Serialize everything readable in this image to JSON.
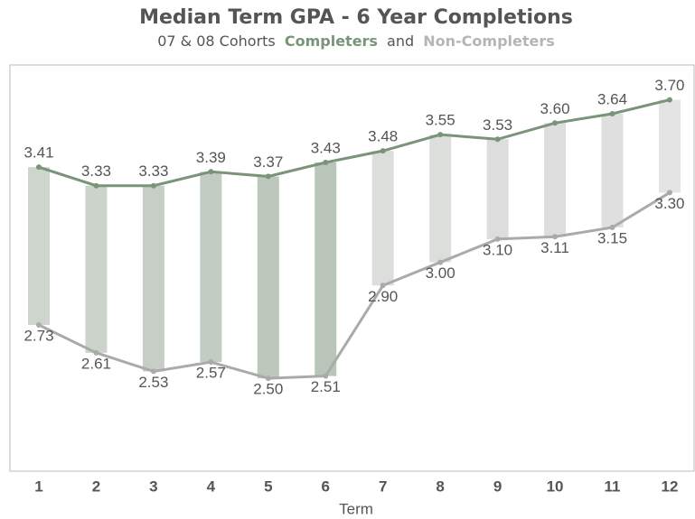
{
  "chart_data": {
    "type": "line-range",
    "title": "Median Term GPA - 6 Year Completions",
    "subtitle": [
      "07 & 08 Cohorts",
      "Completers",
      "and",
      "Non-Completers"
    ],
    "x_label": "Term",
    "categories": [
      "1",
      "2",
      "3",
      "4",
      "5",
      "6",
      "7",
      "8",
      "9",
      "10",
      "11",
      "12"
    ],
    "series": [
      {
        "name": "Completers",
        "color": "#7a9479",
        "values": [
          3.41,
          3.33,
          3.33,
          3.39,
          3.37,
          3.43,
          3.48,
          3.55,
          3.53,
          3.6,
          3.64,
          3.7
        ],
        "value_labels": [
          "3.41",
          "3.33",
          "3.33",
          "3.39",
          "3.37",
          "3.43",
          "3.48",
          "3.55",
          "3.53",
          "3.60",
          "3.64",
          "3.70"
        ]
      },
      {
        "name": "Non-Completers",
        "color": "#aaaaaa",
        "values": [
          2.73,
          2.61,
          2.53,
          2.57,
          2.5,
          2.51,
          2.9,
          3.0,
          3.1,
          3.11,
          3.15,
          3.3
        ],
        "value_labels": [
          "2.73",
          "2.61",
          "2.53",
          "2.57",
          "2.50",
          "2.51",
          "2.90",
          "3.00",
          "3.10",
          "3.11",
          "3.15",
          "3.30"
        ]
      }
    ],
    "bar_colors": [
      "#cdd5cd",
      "#cbd3cb",
      "#c6cec6",
      "#c3ccc3",
      "#bdc8bd",
      "#b9c5b9",
      "#dcdedc",
      "#dcdedc",
      "#dddddd",
      "#dedede",
      "#dfdfdf",
      "#e4e4e4"
    ],
    "ylim": [
      2.1,
      3.85
    ]
  }
}
